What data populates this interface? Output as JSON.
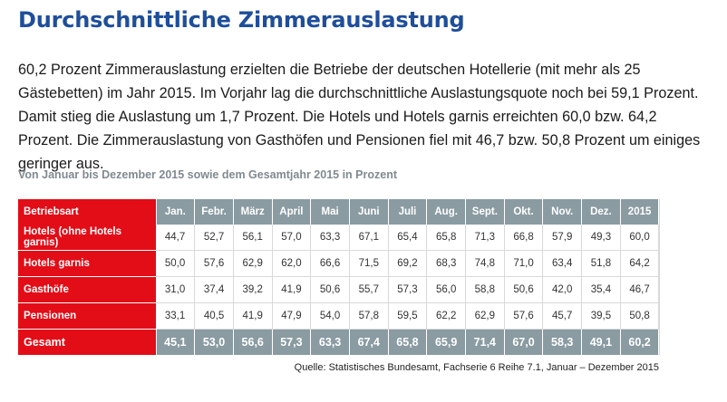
{
  "title": "Durchschnittliche Zimmerauslastung",
  "intro": "60,2 Prozent Zimmerauslastung erzielten die Betriebe der deutschen Hotellerie (mit mehr als 25 Gästebetten) im Jahr 2015. Im Vorjahr lag die durchschnittliche Auslastungsquote noch bei 59,1 Prozent. Damit stieg die Auslastung um 1,7 Prozent. Die Hotels und Hotels garnis erreichten 60,0 bzw. 64,2 Prozent. Die Zimmer­auslastung von Gasthöfen und Pensionen fiel mit 46,7 bzw. 50,8 Prozent um einiges geringer aus.",
  "subtitle": "Von Januar bis Dezember 2015 sowie dem Gesamtjahr 2015 in Prozent",
  "table": {
    "header": [
      "Betriebsart",
      "Jan.",
      "Febr.",
      "März",
      "April",
      "Mai",
      "Juni",
      "Juli",
      "Aug.",
      "Sept.",
      "Okt.",
      "Nov.",
      "Dez.",
      "2015"
    ],
    "rows": [
      {
        "label": "Hotels (ohne Hotels garnis)",
        "values": [
          "44,7",
          "52,7",
          "56,1",
          "57,0",
          "63,3",
          "67,1",
          "65,4",
          "65,8",
          "71,3",
          "66,8",
          "57,9",
          "49,3",
          "60,0"
        ]
      },
      {
        "label": "Hotels garnis",
        "values": [
          "50,0",
          "57,6",
          "62,9",
          "62,0",
          "66,6",
          "71,5",
          "69,2",
          "68,3",
          "74,8",
          "71,0",
          "63,4",
          "51,8",
          "64,2"
        ]
      },
      {
        "label": "Gasthöfe",
        "values": [
          "31,0",
          "37,4",
          "39,2",
          "41,9",
          "50,6",
          "55,7",
          "57,3",
          "56,0",
          "58,8",
          "50,6",
          "42,0",
          "35,4",
          "46,7"
        ]
      },
      {
        "label": "Pensionen",
        "values": [
          "33,1",
          "40,5",
          "41,9",
          "47,9",
          "54,0",
          "57,8",
          "59,5",
          "62,2",
          "62,9",
          "57,6",
          "45,7",
          "39,5",
          "50,8"
        ]
      },
      {
        "label": "Gesamt",
        "values": [
          "45,1",
          "53,0",
          "56,6",
          "57,3",
          "63,3",
          "67,4",
          "65,8",
          "65,9",
          "71,4",
          "67,0",
          "58,3",
          "49,1",
          "60,2"
        ]
      }
    ]
  },
  "source": "Quelle: Statistisches Bundesamt, Fachserie 6 Reihe 7.1, Januar – Dezember 2015",
  "colors": {
    "title": "#1f4e9a",
    "accent_red": "#e30d17",
    "header_gray": "#8a9ba2"
  }
}
